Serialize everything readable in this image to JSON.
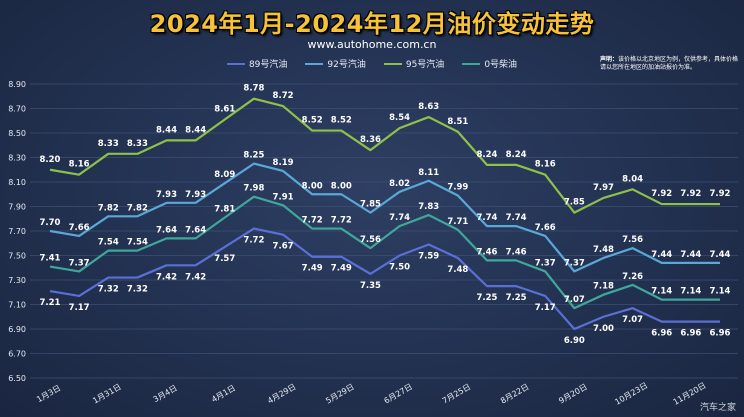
{
  "header": {
    "title": "2024年1月-2024年12月油价变动走势",
    "site": "www.autohome.com.cn",
    "note_label": "声明：",
    "note_text": "该价格以北京地区为例，仅供参考，具体价格请以您所在地区的加油站报价为准。",
    "watermark": "汽车之家"
  },
  "chart_data": {
    "type": "line",
    "title": "2024年1月-2024年12月油价变动走势",
    "xlabel": "",
    "ylabel": "",
    "ylim": [
      6.5,
      8.9
    ],
    "yticks": [
      "6.50",
      "6.70",
      "6.90",
      "7.10",
      "7.30",
      "7.50",
      "7.70",
      "7.90",
      "8.10",
      "8.30",
      "8.50",
      "8.70",
      "8.90"
    ],
    "grid": true,
    "legend_position": "top-center",
    "x_tick_labels": [
      "1月3日",
      "1月31日",
      "3月4日",
      "4月1日",
      "4月29日",
      "5月29日",
      "6月27日",
      "7月25日",
      "8月22日",
      "9月20日",
      "10月23日",
      "11月20日"
    ],
    "series": [
      {
        "name": "89号汽油",
        "color": "#5b6fd6",
        "values": [
          7.21,
          7.17,
          7.32,
          7.32,
          7.42,
          7.42,
          7.57,
          7.72,
          7.67,
          7.49,
          7.49,
          7.35,
          7.5,
          7.59,
          7.48,
          7.25,
          7.25,
          7.17,
          6.9,
          7.0,
          7.07,
          6.96,
          6.96,
          6.96
        ],
        "labels": [
          "7.21",
          "7.17",
          "7.32",
          "7.32",
          "7.42",
          "7.42",
          "7.57",
          "7.72",
          "7.67",
          "7.49",
          "7.49",
          "7.35",
          "7.50",
          "7.59",
          "7.48",
          "7.25",
          "7.25",
          "7.17",
          "6.90",
          "7.00",
          "7.07",
          "6.96",
          "6.96",
          "6.96"
        ]
      },
      {
        "name": "92号汽油",
        "color": "#5aa8d8",
        "values": [
          7.7,
          7.66,
          7.82,
          7.82,
          7.93,
          7.93,
          8.09,
          8.25,
          8.19,
          8.0,
          8.0,
          7.85,
          8.02,
          8.11,
          7.99,
          7.74,
          7.74,
          7.66,
          7.37,
          7.48,
          7.56,
          7.44,
          7.44,
          7.44
        ],
        "labels": [
          "7.70",
          "7.66",
          "7.82",
          "7.82",
          "7.93",
          "7.93",
          "8.09",
          "8.25",
          "8.19",
          "8.00",
          "8.00",
          "7.85",
          "8.02",
          "8.11",
          "7.99",
          "7.74",
          "7.74",
          "7.66",
          "7.37",
          "7.48",
          "7.56",
          "7.44",
          "7.44",
          "7.44"
        ]
      },
      {
        "name": "95号汽油",
        "color": "#8fc04a",
        "values": [
          8.2,
          8.16,
          8.33,
          8.33,
          8.44,
          8.44,
          8.61,
          8.78,
          8.72,
          8.52,
          8.52,
          8.36,
          8.54,
          8.63,
          8.51,
          8.24,
          8.24,
          8.16,
          7.85,
          7.97,
          8.04,
          7.92,
          7.92,
          7.92
        ],
        "labels": [
          "8.20",
          "8.16",
          "8.33",
          "8.33",
          "8.44",
          "8.44",
          "8.61",
          "8.78",
          "8.72",
          "8.52",
          "8.52",
          "8.36",
          "8.54",
          "8.63",
          "8.51",
          "8.24",
          "8.24",
          "8.16",
          "7.85",
          "7.97",
          "8.04",
          "7.92",
          "7.92",
          "7.92"
        ]
      },
      {
        "name": "0号柴油",
        "color": "#3fa89a",
        "values": [
          7.41,
          7.37,
          7.54,
          7.54,
          7.64,
          7.64,
          7.81,
          7.98,
          7.91,
          7.72,
          7.72,
          7.56,
          7.74,
          7.83,
          7.71,
          7.46,
          7.46,
          7.37,
          7.07,
          7.18,
          7.26,
          7.14,
          7.14,
          7.14
        ],
        "labels": [
          "7.41",
          "7.37",
          "7.54",
          "7.54",
          "7.64",
          "7.64",
          "7.81",
          "7.98",
          "7.91",
          "7.72",
          "7.72",
          "7.56",
          "7.74",
          "7.83",
          "7.71",
          "7.46",
          "7.46",
          "7.37",
          "7.07",
          "7.18",
          "7.26",
          "7.14",
          "7.14",
          "7.14"
        ]
      }
    ]
  }
}
